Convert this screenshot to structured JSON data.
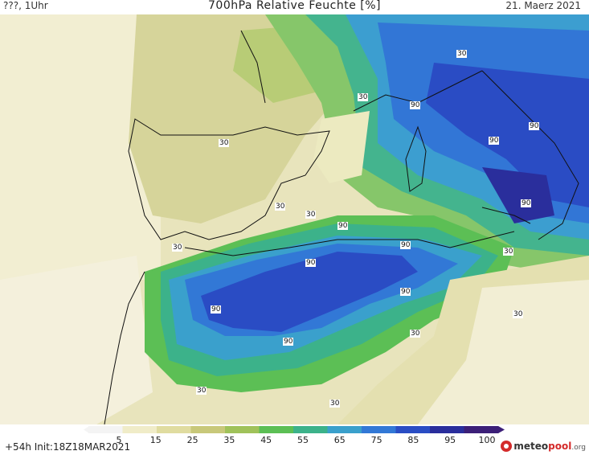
{
  "header": {
    "run_label": "???, 1Uhr",
    "title": "700hPa Relative Feuchte [%]",
    "date": "21. Maerz 2021"
  },
  "footer": {
    "init": "+54h  Init:18Z18MAR2021"
  },
  "logo": {
    "part1": "meteo",
    "part2": "pool",
    "part3": ".org"
  },
  "colorbar": {
    "ticks": [
      "5",
      "15",
      "25",
      "35",
      "45",
      "55",
      "65",
      "75",
      "85",
      "95",
      "100"
    ],
    "colors": [
      "#f4f4f4",
      "#f0ecc8",
      "#e0dca0",
      "#c8c87a",
      "#a0c25a",
      "#5cbf55",
      "#3cb28a",
      "#3aa0cc",
      "#3278d6",
      "#2a4dc4",
      "#2a2e9c",
      "#3c1f78"
    ]
  },
  "contour_labels": [
    "30",
    "30",
    "30",
    "30",
    "30",
    "30",
    "30",
    "30",
    "30",
    "30",
    "30",
    "90",
    "90",
    "90",
    "90",
    "90",
    "90",
    "90",
    "90",
    "90",
    "90"
  ]
}
